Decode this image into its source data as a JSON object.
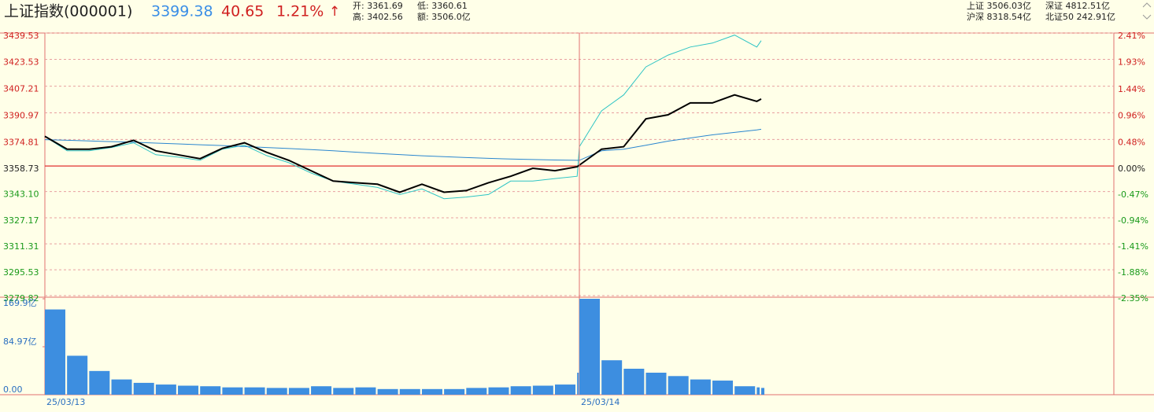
{
  "header": {
    "title": "上证指数(000001)",
    "price": "3399.38",
    "change": "40.65",
    "pct": "1.21%",
    "arrow": "↑",
    "stats": [
      [
        "开: 3361.69",
        "低: 3360.61"
      ],
      [
        "高: 3402.56",
        "额: 3506.0亿"
      ]
    ],
    "markets": [
      [
        "上证 3506.03亿",
        "深证 4812.51亿"
      ],
      [
        "沪深 8318.54亿",
        "北证50 242.91亿"
      ]
    ]
  },
  "chart_data": [
    {
      "type": "line",
      "x": [
        0,
        10,
        20,
        30,
        40,
        50,
        60,
        70,
        80,
        90,
        100,
        110,
        120,
        130,
        140,
        150,
        160,
        170,
        180,
        190,
        200,
        210,
        220,
        230,
        240,
        241,
        251,
        261,
        271,
        281,
        291,
        301,
        311,
        321,
        323
      ],
      "xlim": [
        0,
        482
      ],
      "ylim": [
        3279.82,
        3439.53
      ],
      "yticks": [
        3279.82,
        3295.53,
        3311.31,
        3327.17,
        {
          "value": 3343.1,
          "label": "3343.10"
        },
        3358.73,
        3374.81,
        3390.97,
        3407.21,
        3423.53,
        3439.53
      ],
      "y2lim": [
        -2.35,
        2.41
      ],
      "y2ticks": [
        {
          "value": -2.35,
          "label": "-2.35%"
        },
        {
          "value": -1.88,
          "label": "-1.88%"
        },
        {
          "value": -1.41,
          "label": "-1.41%"
        },
        {
          "value": -0.94,
          "label": "-0.94%"
        },
        {
          "value": -0.47,
          "label": "-0.47%"
        },
        {
          "value": 0,
          "label": "0.00%"
        },
        {
          "value": 0.48,
          "label": "0.48%"
        },
        {
          "value": 0.96,
          "label": "0.96%"
        },
        {
          "value": 1.44,
          "label": "1.44%"
        },
        {
          "value": 1.93,
          "label": "1.93%"
        },
        {
          "value": 2.41,
          "label": "2.41%"
        }
      ],
      "grid": true,
      "series": [
        {
          "color": "#2ec4c4",
          "values": [
            3376.7,
            3367.9,
            3367.9,
            3369.9,
            3372.8,
            3365.5,
            3364.1,
            3362.1,
            3368.9,
            3371.3,
            3365.0,
            3360.7,
            3354.4,
            3349.5,
            3347.6,
            3345.6,
            3341.3,
            3344.7,
            3338.8,
            3339.8,
            3341.3,
            3349.5,
            3349.5,
            3351.0,
            3352.4,
            3370.4,
            3392.2,
            3401.9,
            3418.9,
            3426.1,
            3431.0,
            3433.4,
            3438.3,
            3431.0,
            3434.9
          ]
        },
        {
          "color": "#2a86cf",
          "values": [
            3374.7,
            3374.3,
            3373.9,
            3373.5,
            3373.1,
            3372.6,
            3372.1,
            3371.6,
            3371.1,
            3370.5,
            3369.9,
            3369.3,
            3368.6,
            3367.9,
            3367.1,
            3366.3,
            3365.6,
            3364.9,
            3364.3,
            3363.8,
            3363.3,
            3362.9,
            3362.6,
            3362.3,
            3362.1,
            3362.1,
            3367.9,
            3368.9,
            3371.3,
            3373.8,
            3375.7,
            3377.6,
            3379.1,
            3380.6,
            3381.0
          ]
        },
        {
          "color": "#000000",
          "values": [
            3376.7,
            3368.9,
            3368.9,
            3370.4,
            3374.3,
            3367.9,
            3365.5,
            3363.1,
            3369.4,
            3372.8,
            3367.0,
            3362.1,
            3355.8,
            3349.5,
            3348.5,
            3347.6,
            3342.7,
            3347.6,
            3342.7,
            3343.7,
            3348.5,
            3352.4,
            3357.3,
            3355.8,
            3358.2,
            3359.2,
            3368.9,
            3370.4,
            3387.3,
            3389.8,
            3397.0,
            3397.0,
            3401.9,
            3398.0,
            3399.4
          ]
        }
      ]
    },
    {
      "type": "bar",
      "x": [
        0,
        10,
        20,
        30,
        40,
        50,
        60,
        70,
        80,
        90,
        100,
        110,
        120,
        130,
        140,
        150,
        160,
        170,
        180,
        190,
        200,
        210,
        220,
        230,
        240,
        241,
        251,
        261,
        271,
        281,
        291,
        301,
        311,
        321,
        323
      ],
      "xlim": [
        0,
        482
      ],
      "xticks": [
        {
          "value": 0,
          "label": "25/03/13"
        },
        {
          "value": 241,
          "label": "25/03/14"
        }
      ],
      "ylim": [
        0,
        169.9
      ],
      "yticks": [
        {
          "value": 0,
          "label": "0.00"
        },
        {
          "value": 84.97,
          "label": "84.97亿"
        },
        {
          "value": 169.9,
          "label": "169.9亿"
        }
      ],
      "color": "#3d8ee0",
      "values": [
        151,
        69,
        42,
        27,
        21,
        18,
        16,
        15,
        13,
        13,
        12,
        12,
        15,
        12,
        13,
        10,
        10,
        10,
        10,
        12,
        13,
        15,
        16,
        18,
        39,
        169.9,
        61,
        46,
        39,
        33,
        27,
        25,
        15,
        13,
        12
      ]
    }
  ]
}
